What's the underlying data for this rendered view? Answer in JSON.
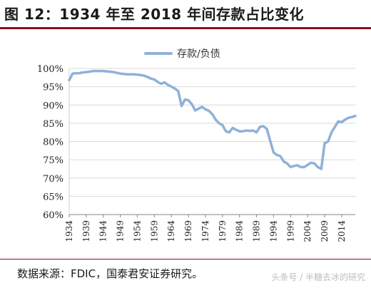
{
  "figure": {
    "title": "图 12：1934 年至 2018 年间存款占比变化",
    "source": "数据来源：FDIC，国泰君安证券研究。",
    "watermark": "头条号 / 半糖去冰的研究"
  },
  "chart_data": {
    "type": "line",
    "ylabel": "",
    "xlabel": "",
    "ylim": [
      60,
      100
    ],
    "yticks": [
      "100%",
      "95%",
      "90%",
      "85%",
      "80%",
      "75%",
      "70%",
      "65%",
      "60%"
    ],
    "xticks": [
      "1934",
      "1939",
      "1944",
      "1949",
      "1954",
      "1959",
      "1964",
      "1969",
      "1974",
      "1979",
      "1984",
      "1989",
      "1994",
      "1999",
      "2004",
      "2009",
      "2014"
    ],
    "xrange": [
      1934,
      2018
    ],
    "grid": true,
    "legend_position": "top-center",
    "series": [
      {
        "name": "存款/负债",
        "color": "#8fb1d9",
        "x": [
          1934,
          1935,
          1936,
          1937,
          1938,
          1939,
          1940,
          1941,
          1942,
          1943,
          1944,
          1945,
          1946,
          1947,
          1948,
          1949,
          1950,
          1951,
          1952,
          1953,
          1954,
          1955,
          1956,
          1957,
          1958,
          1959,
          1960,
          1961,
          1962,
          1963,
          1964,
          1965,
          1966,
          1967,
          1968,
          1969,
          1970,
          1971,
          1972,
          1973,
          1974,
          1975,
          1976,
          1977,
          1978,
          1979,
          1980,
          1981,
          1982,
          1983,
          1984,
          1985,
          1986,
          1987,
          1988,
          1989,
          1990,
          1991,
          1992,
          1993,
          1994,
          1995,
          1996,
          1997,
          1998,
          1999,
          2000,
          2001,
          2002,
          2003,
          2004,
          2005,
          2006,
          2007,
          2008,
          2009,
          2010,
          2011,
          2012,
          2013,
          2014,
          2015,
          2016,
          2017,
          2018
        ],
        "values": [
          96.8,
          98.6,
          98.7,
          98.7,
          98.9,
          99.0,
          99.1,
          99.3,
          99.3,
          99.3,
          99.3,
          99.2,
          99.1,
          99.0,
          98.8,
          98.6,
          98.5,
          98.4,
          98.4,
          98.4,
          98.3,
          98.2,
          98.0,
          97.7,
          97.2,
          97.0,
          96.3,
          95.8,
          96.2,
          95.5,
          95.0,
          94.5,
          93.8,
          89.7,
          91.5,
          91.3,
          90.2,
          88.5,
          89.0,
          89.5,
          88.8,
          88.4,
          87.5,
          86.0,
          85.0,
          84.5,
          82.8,
          82.5,
          83.7,
          83.2,
          82.8,
          82.8,
          83.0,
          82.9,
          83.0,
          82.5,
          84.0,
          84.2,
          83.5,
          80.2,
          77.0,
          76.3,
          76.0,
          74.5,
          74.0,
          73.0,
          73.3,
          73.5,
          73.0,
          73.0,
          73.6,
          74.2,
          74.0,
          73.0,
          72.5,
          79.5,
          80.0,
          82.5,
          84.0,
          85.5,
          85.3,
          86.0,
          86.5,
          86.7,
          87.0
        ]
      }
    ]
  }
}
